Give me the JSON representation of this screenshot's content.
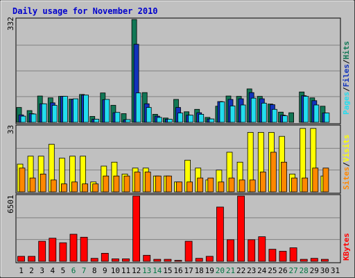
{
  "chart_data": {
    "title": "Daily usage for November 2010",
    "type": "bar",
    "days": [
      "1",
      "2",
      "3",
      "4",
      "5",
      "6",
      "7",
      "8",
      "9",
      "10",
      "11",
      "12",
      "13",
      "14",
      "15",
      "16",
      "17",
      "18",
      "19",
      "20",
      "21",
      "22",
      "23",
      "24",
      "25",
      "26",
      "27",
      "28",
      "29",
      "30",
      "31"
    ],
    "weekend_days": [
      "6",
      "7",
      "13",
      "14",
      "20",
      "21",
      "27",
      "28"
    ],
    "panels": [
      {
        "ymax_label": "332",
        "ymax": 332,
        "legend": [
          "Pages",
          "/",
          "Files",
          "/",
          "Hits"
        ],
        "series": [
          {
            "name": "Hits",
            "color": "#117755",
            "values": [
              48,
              38,
              85,
              79,
              84,
              75,
              90,
              19,
              95,
              55,
              28,
              332,
              96,
              26,
              14,
              74,
              34,
              42,
              16,
              52,
              85,
              84,
              108,
              84,
              59,
              33,
              31,
              98,
              79,
              52,
              0
            ]
          },
          {
            "name": "Files",
            "color": "#1133bb",
            "values": [
              24,
              28,
              60,
              63,
              84,
              74,
              88,
              10,
              73,
              31,
              8,
              252,
              60,
              20,
              10,
              48,
              23,
              31,
              11,
              67,
              74,
              76,
              96,
              76,
              57,
              23,
              0,
              86,
              70,
              30,
              0
            ]
          },
          {
            "name": "Pages",
            "color": "#22ddee",
            "values": [
              20,
              27,
              60,
              55,
              84,
              76,
              88,
              10,
              74,
              32,
              9,
              95,
              48,
              16,
              10,
              30,
              23,
              26,
              11,
              66,
              53,
              56,
              78,
              62,
              42,
              21,
              0,
              84,
              56,
              30,
              0
            ]
          }
        ]
      },
      {
        "ymax_label": "33",
        "ymax": 33,
        "legend": [
          "Sites",
          "/",
          "Visits"
        ],
        "series": [
          {
            "name": "Visits",
            "color": "#ffff00",
            "values": [
              14,
              18,
              18,
              24,
              17,
              18,
              18,
              5,
              13,
              15,
              9,
              12,
              12,
              8,
              8,
              5,
              16,
              12,
              6,
              11,
              20,
              15,
              30,
              30,
              30,
              28,
              9,
              32,
              32,
              8,
              0
            ]
          },
          {
            "name": "Sites",
            "color": "#ff8800",
            "values": [
              12,
              7,
              9,
              6,
              4,
              5,
              4,
              4,
              8,
              8,
              8,
              10,
              10,
              8,
              8,
              5,
              5,
              7,
              7,
              5,
              7,
              6,
              6,
              10,
              20,
              15,
              7,
              7,
              12,
              12,
              0
            ]
          }
        ]
      },
      {
        "ymax_label": "6501",
        "ymax": 6501,
        "legend": [
          "KBytes"
        ],
        "series": [
          {
            "name": "KBytes",
            "color": "#ff0000",
            "values": [
              500,
              500,
              2000,
              2300,
              1850,
              2700,
              2400,
              300,
              800,
              250,
              250,
              6501,
              600,
              200,
              200,
              100,
              2000,
              300,
              500,
              5400,
              2150,
              6501,
              2150,
              2450,
              1200,
              1000,
              1350,
              200,
              300,
              200,
              0
            ]
          }
        ]
      }
    ]
  }
}
